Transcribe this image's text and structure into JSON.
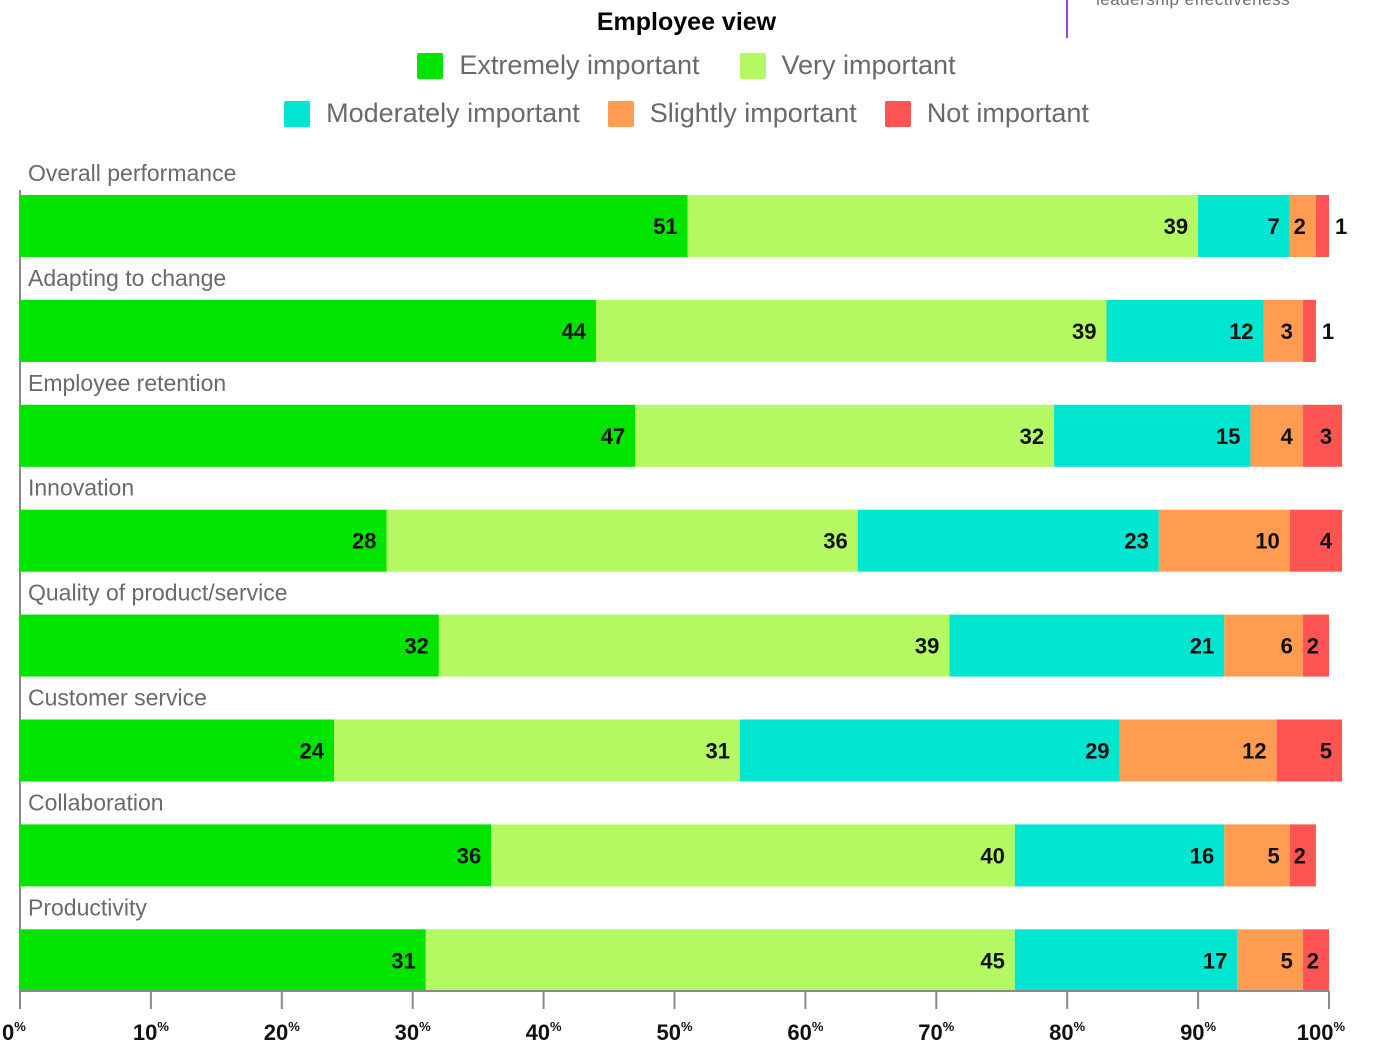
{
  "header": {
    "corner_note": "leadership effectiveness",
    "title": "Employee view"
  },
  "legend": [
    {
      "label": "Extremely important",
      "color": "#00e400"
    },
    {
      "label": "Very important",
      "color": "#b4f962"
    },
    {
      "label": "Moderately important",
      "color": "#00e6d0"
    },
    {
      "label": "Slightly important",
      "color": "#ff9c52"
    },
    {
      "label": "Not important",
      "color": "#ff5454"
    }
  ],
  "chart_data": {
    "type": "bar",
    "orientation": "horizontal",
    "stacked": true,
    "title": "Employee view",
    "categories": [
      "Overall performance",
      "Adapting to change",
      "Employee retention",
      "Innovation",
      "Quality of product/service",
      "Customer service",
      "Collaboration",
      "Productivity"
    ],
    "series": [
      {
        "name": "Extremely important",
        "color": "#00e400",
        "values": [
          51,
          44,
          47,
          28,
          32,
          24,
          36,
          31
        ]
      },
      {
        "name": "Very important",
        "color": "#b4f962",
        "values": [
          39,
          39,
          32,
          36,
          39,
          31,
          40,
          45
        ]
      },
      {
        "name": "Moderately important",
        "color": "#00e6d0",
        "values": [
          7,
          12,
          15,
          23,
          21,
          29,
          16,
          17
        ]
      },
      {
        "name": "Slightly important",
        "color": "#ff9c52",
        "values": [
          2,
          3,
          4,
          10,
          6,
          12,
          5,
          5
        ]
      },
      {
        "name": "Not important",
        "color": "#ff5454",
        "values": [
          1,
          1,
          3,
          4,
          2,
          5,
          2,
          2
        ]
      }
    ],
    "xlim": [
      0,
      100
    ],
    "xticks": [
      0,
      10,
      20,
      30,
      40,
      50,
      60,
      70,
      80,
      90,
      100
    ],
    "tick_suffix": "%",
    "grid": false,
    "legend_position": "top-center"
  }
}
